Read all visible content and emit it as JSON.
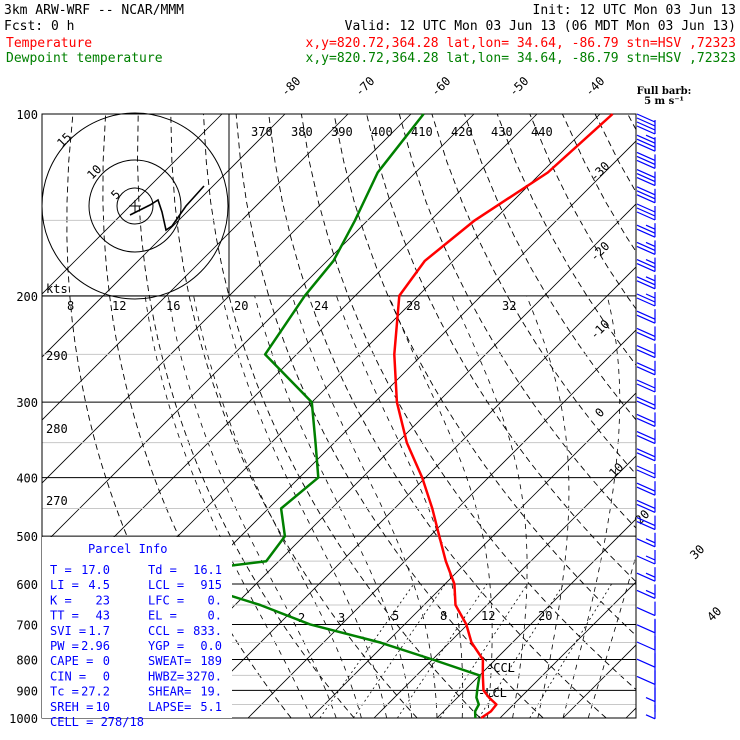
{
  "header": {
    "model": "3km ARW-WRF -- NCAR/MMM",
    "init": "Init: 12 UTC Mon 03 Jun 13",
    "fcst": "Fcst:     0 h",
    "valid": "Valid: 12 UTC Mon 03 Jun 13 (06 MDT Mon 03 Jun 13)",
    "temp_label": "Temperature",
    "dew_label": "Dewpoint temperature",
    "temp_loc": "x,y=820.72,364.28   lat,lon= 34.64, -86.79   stn=HSV ,72323",
    "dew_loc": "x,y=820.72,364.28   lat,lon= 34.64, -86.79   stn=HSV ,72323",
    "barb_title": "Full barb:",
    "barb_units": "5 m s⁻¹"
  },
  "colors": {
    "temperature": "#ff0000",
    "dewpoint": "#008000",
    "text": "#000000",
    "barb": "#0000ff",
    "panel_text": "#0000ff"
  },
  "hodograph": {
    "ring_labels": [
      "5",
      "10",
      "15"
    ],
    "speed_axis_label": "kts",
    "speed_ticks": [
      "8",
      "12",
      "16",
      "20",
      "24",
      "28",
      "32"
    ]
  },
  "chart_data": {
    "type": "line",
    "chart_kind": "skew-T log-P sounding",
    "pressure_levels": [
      100,
      200,
      300,
      400,
      500,
      600,
      700,
      800,
      900,
      1000
    ],
    "isotherm_labels_top": [
      "-80",
      "-70",
      "-60",
      "-50",
      "-40"
    ],
    "isotherm_labels_right": [
      "-30",
      "-20",
      "-10",
      "0",
      "10",
      "20",
      "30",
      "40"
    ],
    "theta_labels": [
      "370",
      "380",
      "390",
      "400",
      "410",
      "420",
      "430",
      "440"
    ],
    "theta_labels_left": [
      "290",
      "280",
      "270"
    ],
    "mixing_ratio_labels": [
      "2",
      "3",
      "5",
      "8",
      "12",
      "20"
    ],
    "annotations": [
      "LCL",
      "CCL"
    ],
    "series": [
      {
        "name": "Temperature",
        "p": [
          1000,
          975,
          950,
          925,
          900,
          850,
          800,
          750,
          700,
          650,
          600,
          550,
          500,
          450,
          400,
          350,
          300,
          250,
          200,
          175,
          150,
          125,
          100
        ],
        "t": [
          17.0,
          17.5,
          17.3,
          15.0,
          13.0,
          10.5,
          8.0,
          3.5,
          -0.2,
          -5.0,
          -8.5,
          -13.5,
          -18.5,
          -24.0,
          -30.5,
          -38.5,
          -46.5,
          -54.5,
          -63.0,
          -64.5,
          -63.0,
          -59.0,
          -58.0
        ]
      },
      {
        "name": "Dewpoint temperature",
        "p": [
          1000,
          975,
          950,
          925,
          900,
          875,
          850,
          800,
          750,
          700,
          650,
          600,
          575,
          550,
          500,
          450,
          400,
          350,
          300,
          250,
          200,
          175,
          150,
          125,
          100
        ],
        "t": [
          16.1,
          15.0,
          14.5,
          13.0,
          12.0,
          11.0,
          10.0,
          0.0,
          -11.0,
          -25.0,
          -36.0,
          -50.0,
          -55.0,
          -42.0,
          -43.0,
          -48.0,
          -47.0,
          -53.0,
          -60.0,
          -75.0,
          -78.0,
          -79.0,
          -82.0,
          -86.0,
          -88.0
        ]
      }
    ],
    "wind_barb_speeds_ms": [
      20,
      18,
      17,
      16,
      15,
      15,
      14,
      14,
      14,
      13,
      13,
      12,
      12,
      12,
      11,
      11,
      11,
      11,
      11,
      10,
      10,
      10,
      10,
      10,
      9,
      9,
      9,
      8,
      7,
      7,
      6,
      5,
      5,
      4,
      3
    ]
  },
  "parcel_info": {
    "title": "Parcel Info",
    "rows": [
      [
        "T  =",
        "17.0",
        "Td =",
        "16.1"
      ],
      [
        "LI =",
        "4.5",
        "LCL =",
        "915"
      ],
      [
        "K  =",
        "23",
        "LFC =",
        "0."
      ],
      [
        "TT =",
        "43",
        "EL  =",
        "0."
      ],
      [
        "SVI =",
        "1.7",
        "CCL =",
        "833."
      ],
      [
        "PW =",
        "2.96",
        "YGP =",
        "0.0"
      ],
      [
        "CAPE =",
        "0",
        "SWEAT=",
        "189"
      ],
      [
        "CIN =",
        "0",
        "HWBZ=",
        "3270."
      ],
      [
        "Tc =",
        "27.2",
        "SHEAR=",
        "19."
      ],
      [
        "SREH =",
        "10",
        "LAPSE=",
        "5.1"
      ],
      [
        "CELL = 278/18",
        "",
        "",
        ""
      ]
    ]
  }
}
